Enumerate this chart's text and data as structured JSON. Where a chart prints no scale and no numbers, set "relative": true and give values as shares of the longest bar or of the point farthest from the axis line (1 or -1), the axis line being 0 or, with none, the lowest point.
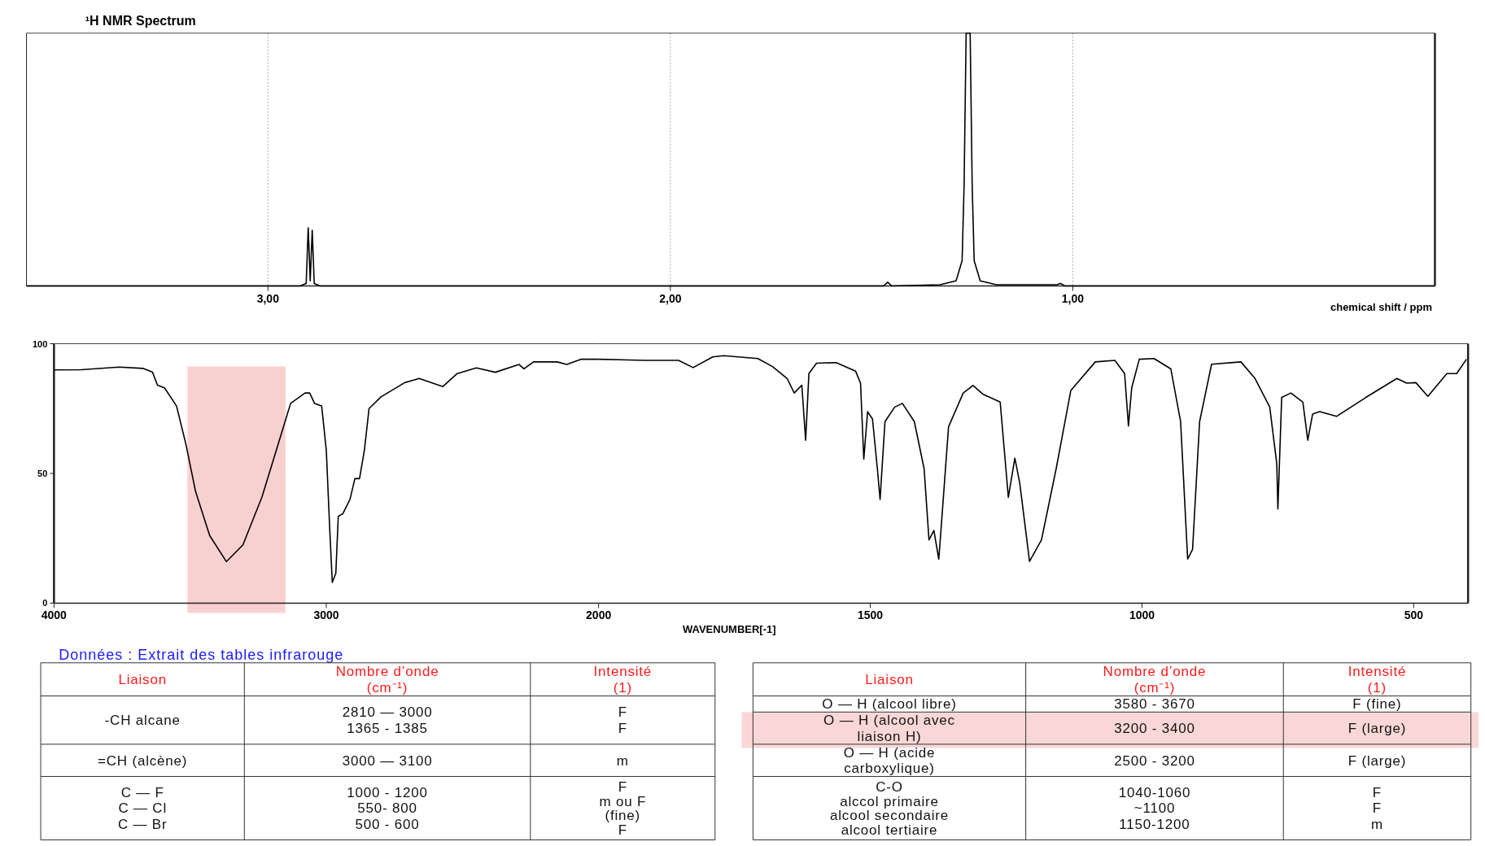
{
  "chart_data": [
    {
      "type": "line",
      "title": "¹H NMR Spectrum",
      "xlabel": "chemical shift / ppm",
      "relative": true,
      "xlim": [
        3.6,
        0.1
      ],
      "xticks": [
        {
          "value": 3,
          "label": "3,00"
        },
        {
          "value": 2,
          "label": "2,00"
        },
        {
          "value": 1,
          "label": "1,00"
        }
      ],
      "grid": "x",
      "marker": "none",
      "series": [
        {
          "color": "#000000",
          "x": [
            3.6,
            2.92,
            2.905,
            2.9,
            2.895,
            2.89,
            2.885,
            2.87,
            1.47,
            1.46,
            1.45,
            1.33,
            1.29,
            1.275,
            1.27,
            1.265,
            1.255,
            1.25,
            1.245,
            1.23,
            1.19,
            1.04,
            1.03,
            1.02,
            0.1
          ],
          "values": [
            0,
            0,
            0.01,
            0.23,
            0.02,
            0.22,
            0.01,
            0,
            0,
            0.015,
            0,
            0.005,
            0.02,
            0.1,
            0.4,
            1,
            1,
            0.4,
            0.1,
            0.02,
            0.005,
            0.005,
            0.01,
            0,
            0
          ]
        }
      ]
    },
    {
      "type": "line",
      "xlim": [
        4000,
        2000
      ],
      "xticks": [
        4000,
        3000,
        2000
      ],
      "ylim": [
        0,
        100
      ],
      "yticks": [
        0,
        50,
        100
      ],
      "marker": "none",
      "bands": [
        {
          "axis": "x",
          "from": 3510,
          "to": 3150,
          "color": "#f9d0d0"
        }
      ],
      "series": [
        {
          "color": "#000000",
          "x": [
            4000,
            3900,
            3760,
            3673,
            3638,
            3620,
            3594,
            3550,
            3515,
            3480,
            3428,
            3367,
            3306,
            3236,
            3166,
            3131,
            3078,
            3061,
            3043,
            3017,
            3000,
            2988,
            2978,
            2965,
            2956,
            2939,
            2913,
            2895,
            2878,
            2860,
            2843,
            2799,
            2712,
            2659,
            2572,
            2519,
            2449,
            2379,
            2292,
            2274,
            2239,
            2152,
            2117,
            2065,
            2000
          ],
          "values": [
            89.9,
            90,
            91,
            90.5,
            89,
            84,
            83,
            76,
            61,
            43,
            26,
            16,
            22.5,
            41,
            65,
            77,
            81,
            81,
            77,
            76,
            59,
            30,
            8,
            11.5,
            33.5,
            34.5,
            40,
            48,
            48,
            59,
            75,
            79.5,
            85,
            86.6,
            83.5,
            88.5,
            90.7,
            89,
            92,
            90.3,
            93,
            93,
            92,
            94,
            94
          ]
        }
      ]
    },
    {
      "type": "line",
      "xlabel": "WAVENUMBER[-1]",
      "xlim": [
        2000,
        400
      ],
      "xticks": [
        1500,
        1000,
        500
      ],
      "ylim": [
        0,
        100
      ],
      "tick_labels": "x",
      "marker": "none",
      "series": [
        {
          "color": "#000000",
          "x": [
            2000,
            1916,
            1853,
            1826,
            1790,
            1770,
            1707,
            1680,
            1653,
            1640,
            1626,
            1619,
            1613,
            1599,
            1563,
            1527,
            1518,
            1512,
            1505,
            1496,
            1487,
            1482,
            1473,
            1455,
            1441,
            1419,
            1401,
            1392,
            1383,
            1374,
            1370,
            1356,
            1329,
            1311,
            1293,
            1261,
            1252,
            1246,
            1234,
            1225,
            1207,
            1185,
            1158,
            1131,
            1086,
            1050,
            1032,
            1025,
            1019,
            1005,
            978,
            947,
            929,
            916,
            907,
            894,
            872,
            818,
            792,
            765,
            752,
            750,
            743,
            726,
            704,
            695,
            686,
            673,
            642,
            588,
            531,
            513,
            496,
            474,
            439,
            421,
            403
          ],
          "values": [
            94,
            93.6,
            93.6,
            90.8,
            94.9,
            95.4,
            94.3,
            91.2,
            86.6,
            81,
            84,
            62.8,
            88.5,
            92.5,
            92.7,
            89.4,
            84.8,
            55.5,
            73.8,
            71,
            51.8,
            40,
            70,
            75.6,
            77,
            70,
            51.8,
            24.4,
            28,
            17,
            28,
            68,
            81,
            83.9,
            80.6,
            77.5,
            55.5,
            40.8,
            55.9,
            46.3,
            16.1,
            24.4,
            51.8,
            82,
            93,
            93.6,
            88.5,
            68.3,
            83,
            94,
            94.3,
            90.3,
            70,
            17,
            20.7,
            70,
            92.1,
            93,
            86.6,
            75.6,
            53.7,
            36.3,
            79.3,
            81,
            77.5,
            62.8,
            72.9,
            73.8,
            72,
            79.3,
            86.6,
            84.8,
            85,
            79.7,
            88.5,
            88.5,
            94
          ]
        }
      ]
    },
    {
      "type": "other",
      "title": "Données : Extrait des tables infrarouge",
      "annotations": [
        "Liaison",
        "Nombre d’onde\n(cm⁻¹)",
        "Intensité\n(1)",
        "-CH alcane",
        "2810 — 3000\n1365 - 1385",
        "F\nF",
        "=CH (alcène)",
        "3000 — 3100",
        "m",
        "C — F\nC — Cl\nC — Br",
        "1000 - 1200\n550- 800\n500 - 600",
        "F\nm ou F\n(fine)\nF",
        "Liaison",
        "Nombre d’onde\n(cm⁻¹)",
        "Intensité\n(1)",
        "O — H (alcool libre)",
        "3580 - 3670",
        "F (fine)",
        "O — H (alcool avec\nliaison H)",
        "3200 - 3400",
        "F (large)",
        "O — H (acide\ncarboxylique)",
        "2500 - 3200",
        "F (large)",
        "C-O\nalccol primaire\nalcool secondaire\nalcool tertiaire",
        "1040-1060\n~1100\n1150-1200",
        "F\nF\nm"
      ]
    }
  ]
}
